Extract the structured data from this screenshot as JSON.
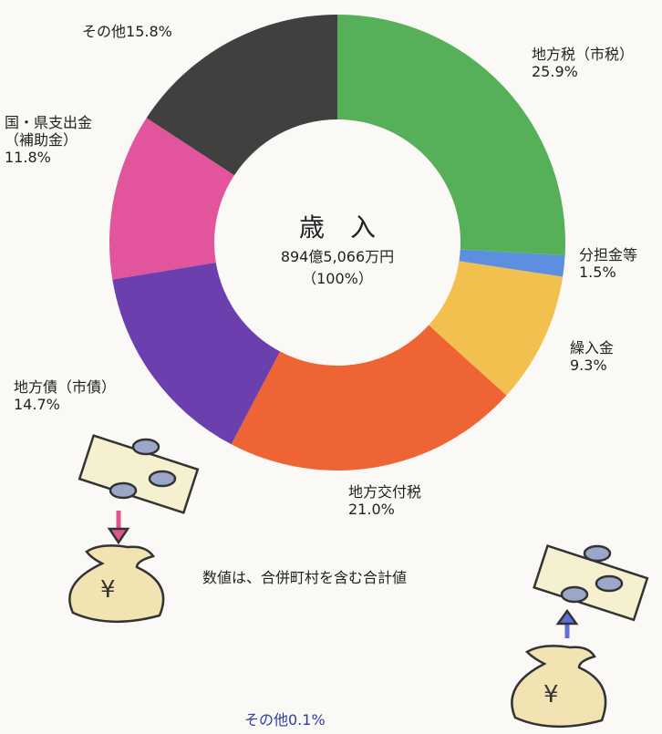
{
  "chart_data": {
    "type": "donut",
    "title": "歳　入",
    "total_label": "894億5,066万円",
    "total_percent_label": "（100%）",
    "categories": [
      "地方税（市税）",
      "分担金等",
      "繰入金",
      "地方交付税",
      "地方債（市債）",
      "国・県支出金\n（補助金）",
      "その他"
    ],
    "values": [
      25.9,
      1.5,
      9.3,
      21.0,
      14.7,
      11.8,
      15.8
    ],
    "value_labels": [
      "25.9%",
      "1.5%",
      "9.3%",
      "21.0%",
      "14.7%",
      "11.8%",
      "15.8%"
    ],
    "colors": [
      "#56b05a",
      "#5d8fe0",
      "#f2c04e",
      "#ee6435",
      "#6b3fae",
      "#e2559c",
      "#404040"
    ],
    "note": "数値は、合併町村を含む合計値",
    "annotation": "その他0.1%"
  }
}
